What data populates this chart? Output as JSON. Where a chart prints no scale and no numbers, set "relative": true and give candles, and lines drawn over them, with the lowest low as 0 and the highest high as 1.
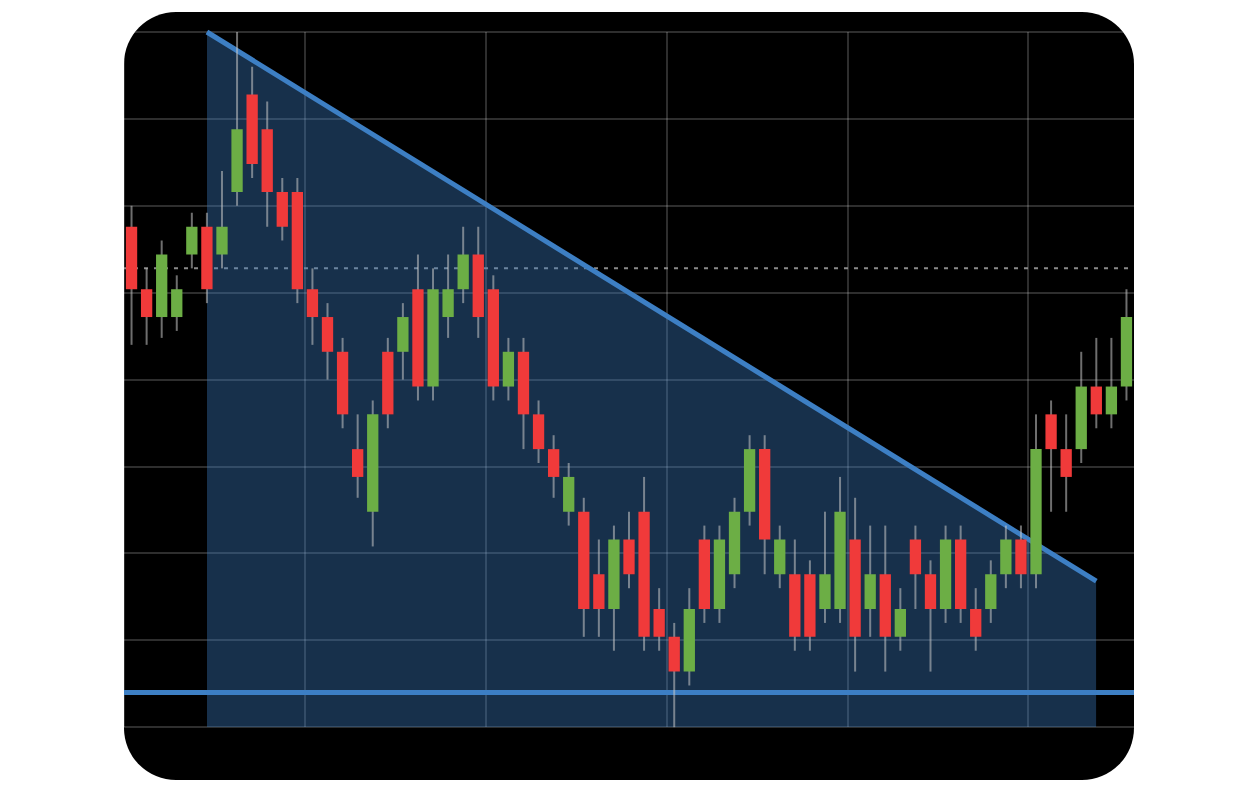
{
  "chart_data": {
    "type": "candlestick",
    "relative": true,
    "grid": true,
    "categories": [
      null,
      null,
      null,
      null,
      null,
      null,
      null,
      null,
      null,
      null,
      null,
      null,
      null,
      null,
      null,
      null,
      null,
      null,
      null,
      null,
      null,
      null,
      null,
      null,
      null,
      null,
      null,
      null,
      null,
      null,
      null,
      null,
      null,
      null,
      null,
      null,
      null,
      null,
      null,
      null,
      null,
      null,
      null,
      null,
      null,
      null,
      null,
      null,
      null,
      null,
      null,
      null,
      null,
      null,
      null,
      null,
      null,
      null,
      null,
      null,
      null,
      null,
      null,
      null,
      null,
      null,
      null
    ],
    "series": [
      {
        "type": "area",
        "color": "#3d7fc4",
        "values": [
          null,
          null,
          null,
          null,
          null,
          1.0,
          null,
          null,
          null,
          null,
          null,
          null,
          null,
          null,
          null,
          null,
          null,
          null,
          null,
          null,
          null,
          null,
          null,
          null,
          null,
          null,
          null,
          null,
          null,
          null,
          null,
          null,
          null,
          null,
          null,
          null,
          null,
          null,
          null,
          null,
          null,
          null,
          null,
          null,
          null,
          null,
          null,
          null,
          null,
          null,
          null,
          null,
          null,
          null,
          null,
          null,
          null,
          null,
          null,
          null,
          null,
          null,
          null,
          null,
          0.21,
          null,
          null
        ]
      },
      {
        "ohlc": [
          [
            0.72,
            0.75,
            0.55,
            0.63
          ],
          [
            0.63,
            0.66,
            0.55,
            0.59
          ],
          [
            0.59,
            0.7,
            0.56,
            0.68
          ],
          [
            0.59,
            0.65,
            0.57,
            0.63
          ],
          [
            0.68,
            0.74,
            0.66,
            0.72
          ],
          [
            0.72,
            0.74,
            0.61,
            0.63
          ],
          [
            0.68,
            0.8,
            0.66,
            0.72
          ],
          [
            0.77,
            1.0,
            0.75,
            0.86
          ],
          [
            0.91,
            0.95,
            0.79,
            0.81
          ],
          [
            0.86,
            0.9,
            0.72,
            0.77
          ],
          [
            0.77,
            0.79,
            0.7,
            0.72
          ],
          [
            0.77,
            0.79,
            0.61,
            0.63
          ],
          [
            0.63,
            0.66,
            0.55,
            0.59
          ],
          [
            0.59,
            0.61,
            0.5,
            0.54
          ],
          [
            0.54,
            0.56,
            0.43,
            0.45
          ],
          [
            0.4,
            0.45,
            0.33,
            0.36
          ],
          [
            0.31,
            0.47,
            0.26,
            0.45
          ],
          [
            0.54,
            0.56,
            0.43,
            0.45
          ],
          [
            0.54,
            0.61,
            0.5,
            0.59
          ],
          [
            0.63,
            0.68,
            0.47,
            0.49
          ],
          [
            0.49,
            0.66,
            0.47,
            0.63
          ],
          [
            0.59,
            0.68,
            0.56,
            0.63
          ],
          [
            0.63,
            0.72,
            0.61,
            0.68
          ],
          [
            0.68,
            0.72,
            0.56,
            0.59
          ],
          [
            0.63,
            0.65,
            0.47,
            0.49
          ],
          [
            0.49,
            0.56,
            0.47,
            0.54
          ],
          [
            0.54,
            0.56,
            0.4,
            0.45
          ],
          [
            0.45,
            0.47,
            0.38,
            0.4
          ],
          [
            0.4,
            0.42,
            0.33,
            0.36
          ],
          [
            0.31,
            0.38,
            0.29,
            0.36
          ],
          [
            0.31,
            0.33,
            0.13,
            0.17
          ],
          [
            0.22,
            0.27,
            0.13,
            0.17
          ],
          [
            0.17,
            0.29,
            0.11,
            0.27
          ],
          [
            0.27,
            0.31,
            0.2,
            0.22
          ],
          [
            0.31,
            0.36,
            0.11,
            0.13
          ],
          [
            0.17,
            0.2,
            0.11,
            0.13
          ],
          [
            0.13,
            0.15,
            0.0,
            0.08
          ],
          [
            0.08,
            0.2,
            0.06,
            0.17
          ],
          [
            0.27,
            0.29,
            0.15,
            0.17
          ],
          [
            0.17,
            0.29,
            0.15,
            0.27
          ],
          [
            0.22,
            0.33,
            0.2,
            0.31
          ],
          [
            0.31,
            0.42,
            0.29,
            0.4
          ],
          [
            0.4,
            0.42,
            0.22,
            0.27
          ],
          [
            0.22,
            0.29,
            0.2,
            0.27
          ],
          [
            0.22,
            0.27,
            0.11,
            0.13
          ],
          [
            0.22,
            0.24,
            0.11,
            0.13
          ],
          [
            0.17,
            0.31,
            0.15,
            0.22
          ],
          [
            0.17,
            0.36,
            0.15,
            0.31
          ],
          [
            0.27,
            0.33,
            0.08,
            0.13
          ],
          [
            0.17,
            0.29,
            0.13,
            0.22
          ],
          [
            0.22,
            0.29,
            0.08,
            0.13
          ],
          [
            0.13,
            0.2,
            0.11,
            0.17
          ],
          [
            0.27,
            0.29,
            0.17,
            0.22
          ],
          [
            0.22,
            0.24,
            0.08,
            0.17
          ],
          [
            0.17,
            0.29,
            0.15,
            0.27
          ],
          [
            0.27,
            0.29,
            0.15,
            0.17
          ],
          [
            0.17,
            0.2,
            0.11,
            0.13
          ],
          [
            0.17,
            0.24,
            0.15,
            0.22
          ],
          [
            0.22,
            0.29,
            0.2,
            0.27
          ],
          [
            0.27,
            0.29,
            0.2,
            0.22
          ],
          [
            0.22,
            0.45,
            0.2,
            0.4
          ],
          [
            0.45,
            0.47,
            0.31,
            0.4
          ],
          [
            0.4,
            0.45,
            0.31,
            0.36
          ],
          [
            0.4,
            0.54,
            0.38,
            0.49
          ],
          [
            0.49,
            0.56,
            0.43,
            0.45
          ],
          [
            0.45,
            0.56,
            0.43,
            0.49
          ],
          [
            0.49,
            0.63,
            0.47,
            0.59
          ]
        ],
        "colors": [
          "#f03a3a",
          "#f03a3a",
          "#6cae45",
          "#6cae45",
          "#6cae45",
          "#f03a3a",
          "#6cae45",
          "#6cae45",
          "#f03a3a",
          "#f03a3a",
          "#f03a3a",
          "#f03a3a",
          "#f03a3a",
          "#f03a3a",
          "#f03a3a",
          "#f03a3a",
          "#6cae45",
          "#f03a3a",
          "#6cae45",
          "#f03a3a",
          "#6cae45",
          "#6cae45",
          "#6cae45",
          "#f03a3a",
          "#f03a3a",
          "#6cae45",
          "#f03a3a",
          "#f03a3a",
          "#f03a3a",
          "#6cae45",
          "#f03a3a",
          "#f03a3a",
          "#6cae45",
          "#f03a3a",
          "#f03a3a",
          "#f03a3a",
          "#f03a3a",
          "#6cae45",
          "#f03a3a",
          "#6cae45",
          "#6cae45",
          "#6cae45",
          "#f03a3a",
          "#6cae45",
          "#f03a3a",
          "#f03a3a",
          "#6cae45",
          "#6cae45",
          "#f03a3a",
          "#6cae45",
          "#f03a3a",
          "#6cae45",
          "#f03a3a",
          "#f03a3a",
          "#6cae45",
          "#f03a3a",
          "#f03a3a",
          "#6cae45",
          "#6cae45",
          "#f03a3a",
          "#6cae45",
          "#f03a3a",
          "#f03a3a",
          "#6cae45",
          "#f03a3a",
          "#6cae45",
          "#6cae45"
        ]
      }
    ],
    "ref_lines": [
      {
        "axis": "y",
        "value": 0.05,
        "color": "#3d7fc4"
      },
      {
        "axis": "y",
        "value": 0.66,
        "color": "#8a8a8a",
        "line_style": "dotted"
      }
    ]
  }
}
